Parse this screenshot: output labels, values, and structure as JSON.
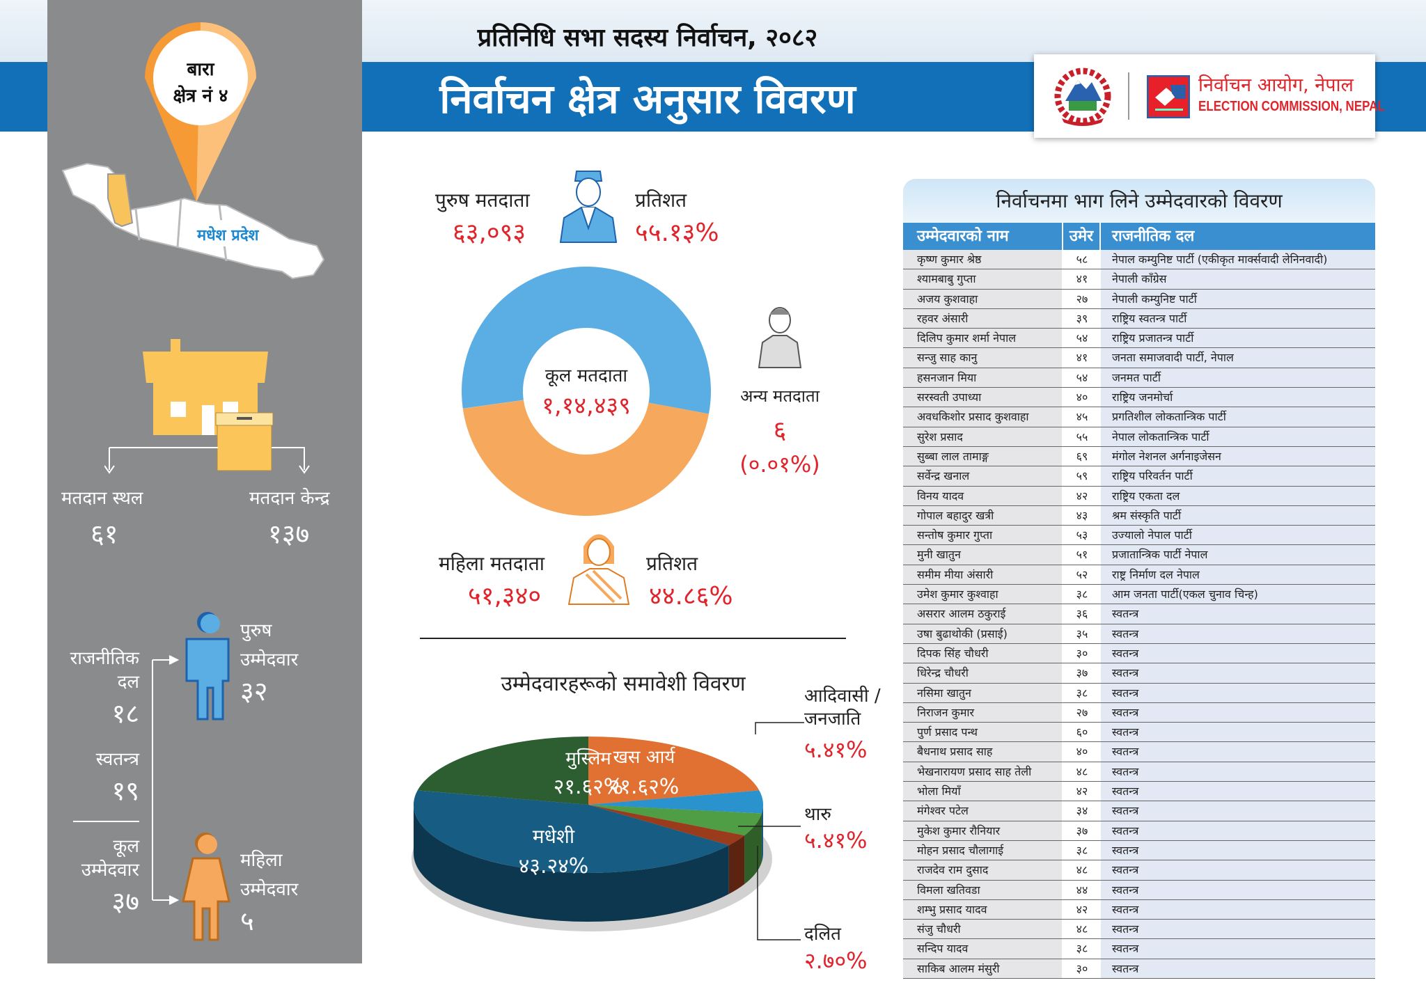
{
  "header": {
    "super_title": "प्रतिनिधि सभा सदस्य निर्वाचन, २०८२",
    "title": "निर्वाचन क्षेत्र अनुसार विवरण",
    "logo_np": "निर्वाचन आयोग, नेपाल",
    "logo_en": "ELECTION COMMISSION, NEPAL"
  },
  "constituency": {
    "district": "बारा",
    "number": "क्षेत्र नं ४",
    "province": "मधेश प्रदेश"
  },
  "polling": {
    "stations_label": "मतदान स्थल",
    "stations_value": "६१",
    "centers_label": "मतदान केन्द्र",
    "centers_value": "१३७"
  },
  "candidates_summary": {
    "party_label_1": "राजनीतिक",
    "party_label_2": "दल",
    "party_value": "१८",
    "independent_label": "स्वतन्त्र",
    "independent_value": "१९",
    "total_label_1": "कूल",
    "total_label_2": "उम्मेदवार",
    "total_value": "३७",
    "male_label_1": "पुरुष",
    "male_label_2": "उम्मेदवार",
    "male_value": "३२",
    "female_label_1": "महिला",
    "female_label_2": "उम्मेदवार",
    "female_value": "५"
  },
  "voters": {
    "male_label": "पुरुष मतदाता",
    "male_value": "६३,०९३",
    "male_pct_label": "प्रतिशत",
    "male_pct": "५५.१३%",
    "female_label": "महिला मतदाता",
    "female_value": "५१,३४०",
    "female_pct_label": "प्रतिशत",
    "female_pct": "४४.८६%",
    "other_label": "अन्य मतदाता",
    "other_value": "६",
    "other_pct": "(०.०१%)",
    "total_label": "कूल मतदाता",
    "total_value": "१,१४,४३९"
  },
  "chart_data": [
    {
      "type": "pie",
      "variant": "donut",
      "categories": [
        "पुरुष मतदाता",
        "महिला मतदाता",
        "अन्य मतदाता"
      ],
      "values": [
        63093,
        51340,
        6
      ],
      "colors": [
        "#5aaee3",
        "#f6a85c",
        "#cccccc"
      ]
    },
    {
      "type": "pie",
      "variant": "3d",
      "title": "उम्मेदवारहरूको समावेशी विवरण",
      "categories": [
        "खस आर्य",
        "आदिवासी / जनजाति",
        "थारु",
        "दलित",
        "मधेशी",
        "मुस्लिम"
      ],
      "values": [
        21.62,
        5.41,
        5.41,
        2.7,
        43.24,
        21.62
      ],
      "labels": [
        "२१.६२%",
        "५.४१%",
        "५.४१%",
        "२.७०%",
        "४३.२४%",
        "२१.६२%"
      ],
      "colors": [
        "#e07132",
        "#2a92cc",
        "#4f9e45",
        "#9a3b1b",
        "#175c82",
        "#2c5e32"
      ]
    }
  ],
  "table": {
    "title": "निर्वाचनमा भाग लिने उम्मेदवारको विवरण",
    "headers": [
      "उम्मेदवारको नाम",
      "उमेर",
      "राजनीतिक दल"
    ],
    "rows": [
      [
        "कृष्ण कुमार श्रेष्ठ",
        "५८",
        "नेपाल कम्युनिष्ट पार्टी (एकीकृत मार्क्सवादी लेनिनवादी)"
      ],
      [
        "श्यामबाबु गुप्ता",
        "४१",
        "नेपाली काँग्रेस"
      ],
      [
        "अजय कुशवाहा",
        "२७",
        "नेपाली कम्युनिष्ट पार्टी"
      ],
      [
        "रहवर अंसारी",
        "३९",
        "राष्ट्रिय स्वतन्त्र पार्टी"
      ],
      [
        "दिलिप कुमार शर्मा नेपाल",
        "५४",
        "राष्ट्रिय प्रजातन्त्र पार्टी"
      ],
      [
        "सन्जु साह कानु",
        "४१",
        "जनता समाजवादी पार्टी, नेपाल"
      ],
      [
        "हसनजान मिया",
        "५४",
        "जनमत पार्टी"
      ],
      [
        "सरस्वती उपाध्या",
        "४०",
        "राष्ट्रिय जनमोर्चा"
      ],
      [
        "अवधकिशोर प्रसाद कुशवाहा",
        "४५",
        "प्रगतिशील लोकतान्त्रिक पार्टी"
      ],
      [
        "सुरेश प्रसाद",
        "५५",
        "नेपाल लोकतान्त्रिक पार्टी"
      ],
      [
        "सुब्बा लाल तामाङ्ग",
        "६९",
        "मंगोल नेशनल अर्गनाइजेसन"
      ],
      [
        "सर्वेन्द्र खनाल",
        "५९",
        "राष्ट्रिय परिवर्तन पार्टी"
      ],
      [
        "विनय यादव",
        "४२",
        "राष्ट्रिय एकता दल"
      ],
      [
        "गोपाल बहादुर खत्री",
        "४३",
        "श्रम संस्कृति पार्टी"
      ],
      [
        "सन्तोष कुमार गुप्ता",
        "५३",
        "उज्यालो नेपाल पार्टी"
      ],
      [
        "मुनी खातुन",
        "५१",
        "प्रजातान्त्रिक पार्टी नेपाल"
      ],
      [
        "समीम मीया अंसारी",
        "५२",
        "राष्ट्र निर्माण दल नेपाल"
      ],
      [
        "उमेश कुमार कुश्वाहा",
        "३८",
        "आम जनता पार्टी(एकल चुनाव चिन्ह)"
      ],
      [
        "असरार आलम ठकुराई",
        "३६",
        "स्वतन्त्र"
      ],
      [
        "उषा बुढाथोकी (प्रसाई)",
        "३५",
        "स्वतन्त्र"
      ],
      [
        "दिपक सिंह चौधरी",
        "३०",
        "स्वतन्त्र"
      ],
      [
        "धिरेन्द्र चौधरी",
        "३७",
        "स्वतन्त्र"
      ],
      [
        "नसिमा खातुन",
        "३८",
        "स्वतन्त्र"
      ],
      [
        "निराजन कुमार",
        "२७",
        "स्वतन्त्र"
      ],
      [
        "पुर्ण प्रसाद पन्थ",
        "६०",
        "स्वतन्त्र"
      ],
      [
        "बैधनाथ प्रसाद साह",
        "४०",
        "स्वतन्त्र"
      ],
      [
        "भेखनारायण प्रसाद साह तेली",
        "४८",
        "स्वतन्त्र"
      ],
      [
        "भोला मियाँ",
        "४२",
        "स्वतन्त्र"
      ],
      [
        "मंगेश्वर पटेल",
        "३४",
        "स्वतन्त्र"
      ],
      [
        "मुकेश कुमार रौनियार",
        "३७",
        "स्वतन्त्र"
      ],
      [
        "मोहन प्रसाद चौलागाई",
        "३८",
        "स्वतन्त्र"
      ],
      [
        "राजदेव राम दुसाद",
        "४८",
        "स्वतन्त्र"
      ],
      [
        "विमला खतिवडा",
        "४४",
        "स्वतन्त्र"
      ],
      [
        "शम्भु प्रसाद यादव",
        "४२",
        "स्वतन्त्र"
      ],
      [
        "संजु चौधरी",
        "४८",
        "स्वतन्त्र"
      ],
      [
        "सन्दिप यादव",
        "३८",
        "स्वतन्त्र"
      ],
      [
        "साकिब आलम मंसुरी",
        "३०",
        "स्वतन्त्र"
      ]
    ]
  },
  "colors": {
    "brand_blue": "#1170b8",
    "panel_gray": "#8a8b8d",
    "accent_red": "#e0242c",
    "pin_orange": "#f59a35"
  }
}
